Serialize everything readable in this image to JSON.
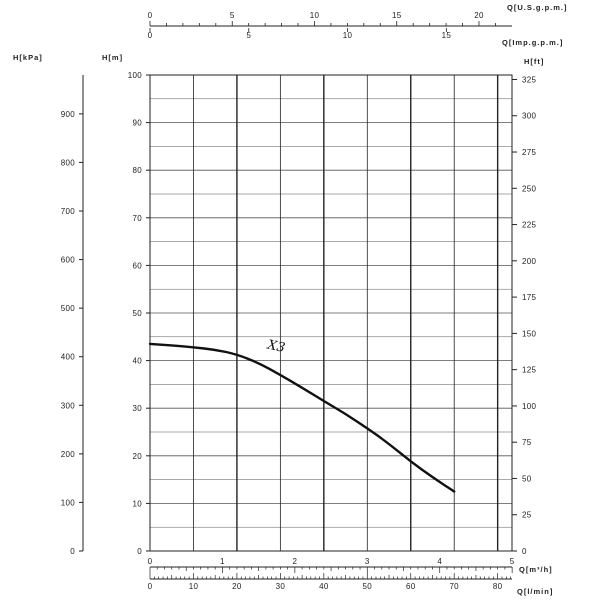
{
  "chart_data": {
    "type": "line",
    "title": "",
    "axes": {
      "head_m": {
        "label": "H[m]",
        "range": [
          0,
          100
        ],
        "ticks": [
          "0",
          "10",
          "20",
          "30",
          "40",
          "50",
          "60",
          "70",
          "80",
          "90",
          "100"
        ]
      },
      "head_kpa": {
        "label": "H[kPa]",
        "range": [
          0,
          980
        ],
        "ticks": [
          "0",
          "100",
          "200",
          "300",
          "400",
          "500",
          "600",
          "700",
          "800",
          "900"
        ]
      },
      "head_ft": {
        "label": "H[ft]",
        "range": [
          0,
          328
        ],
        "ticks": [
          "0",
          "25",
          "50",
          "75",
          "100",
          "125",
          "150",
          "175",
          "200",
          "225",
          "250",
          "275",
          "300",
          "325"
        ]
      },
      "flow_m3h": {
        "label": "Q[m³/h]",
        "range": [
          0,
          5
        ],
        "ticks": [
          "0",
          "1",
          "2",
          "3",
          "4",
          "5"
        ]
      },
      "flow_lmin": {
        "label": "Q[l/min]",
        "range": [
          0,
          83.3
        ],
        "ticks": [
          "0",
          "10",
          "20",
          "30",
          "40",
          "50",
          "60",
          "70",
          "80"
        ]
      },
      "flow_usgpm": {
        "label": "Q[U.S.g.p.m.]",
        "range": [
          0,
          22
        ],
        "ticks": [
          "0",
          "5",
          "10",
          "15",
          "20"
        ]
      },
      "flow_impgpm": {
        "label": "Q[Imp.g.p.m.]",
        "range": [
          0,
          18.3
        ],
        "ticks": [
          "0",
          "5",
          "10",
          "15"
        ]
      }
    },
    "grid": true,
    "series": [
      {
        "name": "X3",
        "x_unit": "l/min",
        "y_unit": "m",
        "x": [
          0,
          5,
          10,
          15,
          20,
          25,
          30,
          35,
          40,
          45,
          50,
          55,
          60,
          65,
          70
        ],
        "y": [
          43.5,
          43.2,
          42.8,
          42.3,
          41.3,
          39.5,
          37.0,
          34.3,
          31.5,
          28.8,
          25.8,
          22.5,
          18.8,
          15.5,
          12.5
        ]
      }
    ]
  }
}
